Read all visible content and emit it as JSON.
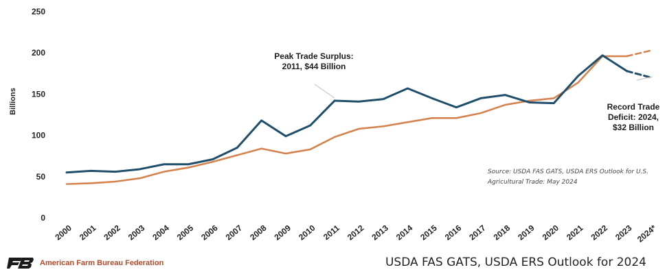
{
  "chart_data": {
    "type": "line",
    "x": [
      "2000",
      "2001",
      "2002",
      "2003",
      "2004",
      "2005",
      "2006",
      "2007",
      "2008",
      "2009",
      "2010",
      "2011",
      "2012",
      "2013",
      "2014",
      "2015",
      "2016",
      "2017",
      "2018",
      "2019",
      "2020",
      "2021",
      "2022",
      "2023",
      "2024*"
    ],
    "ylabel": "Billions",
    "ylim": [
      0,
      250
    ],
    "yticks": [
      0,
      50,
      100,
      150,
      200,
      250
    ],
    "grid": false,
    "projected_from_index": 23,
    "series": [
      {
        "name": "",
        "color": "#1f4e6b",
        "values": [
          55,
          57,
          56,
          59,
          65,
          65,
          71,
          85,
          118,
          99,
          112,
          142,
          141,
          144,
          157,
          145,
          134,
          145,
          149,
          140,
          139,
          172,
          197,
          178,
          170
        ]
      },
      {
        "name": "",
        "color": "#d4834f",
        "values": [
          41,
          42,
          44,
          48,
          56,
          61,
          68,
          76,
          84,
          78,
          83,
          98,
          108,
          111,
          116,
          121,
          121,
          127,
          137,
          142,
          145,
          164,
          196,
          196,
          203
        ]
      }
    ],
    "annotations": [
      {
        "lines": [
          "Peak Trade Surplus:",
          "2011, $44 Billion"
        ]
      },
      {
        "lines": [
          "Record Trade",
          "Deficit: 2024,",
          "$32 Billion"
        ]
      }
    ],
    "source_note": [
      "Source: USDA FAS GATS, USDA ERS Outlook for U.S.",
      "Agricultural Trade: May 2024"
    ]
  },
  "footer": {
    "organization": "American Farm Bureau Federation",
    "source": "USDA FAS GATS, USDA ERS Outlook for 2024"
  },
  "colors": {
    "org_brand": "#b24a2d",
    "logo": "#1a1a1a"
  }
}
